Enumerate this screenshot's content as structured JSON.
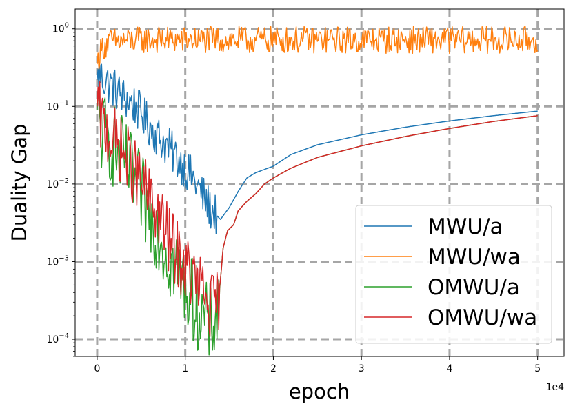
{
  "chart_data": {
    "type": "line",
    "xlabel": "epoch",
    "ylabel": "Duality Gap",
    "x_scale": "linear",
    "x_multiplier_label": "1e4",
    "x_ticks": [
      0,
      10000,
      20000,
      30000,
      40000,
      50000
    ],
    "x_tick_labels": [
      "0",
      "1",
      "2",
      "3",
      "4",
      "5"
    ],
    "xlim": [
      -2500,
      53000
    ],
    "y_scale": "log",
    "y_tick_values": [
      1,
      0.1,
      0.01,
      0.001,
      0.0001
    ],
    "y_tick_labels": [
      {
        "base": "10",
        "exp": "0"
      },
      {
        "base": "10",
        "exp": "−1"
      },
      {
        "base": "10",
        "exp": "−2"
      },
      {
        "base": "10",
        "exp": "−3"
      },
      {
        "base": "10",
        "exp": "−4"
      }
    ],
    "ylim": [
      6e-05,
      1.8
    ],
    "grid": true,
    "legend_position": "lower-right",
    "series": [
      {
        "name": "MWU/a",
        "color": "#1f77b4",
        "noise": 0.55,
        "noise_end": 13500,
        "points": [
          [
            0,
            0.22
          ],
          [
            300,
            0.25
          ],
          [
            1000,
            0.21
          ],
          [
            2000,
            0.17
          ],
          [
            3000,
            0.13
          ],
          [
            4000,
            0.11
          ],
          [
            5000,
            0.08
          ],
          [
            6000,
            0.055
          ],
          [
            7000,
            0.04
          ],
          [
            8000,
            0.03
          ],
          [
            9000,
            0.022
          ],
          [
            10000,
            0.016
          ],
          [
            11000,
            0.011
          ],
          [
            12000,
            0.007
          ],
          [
            13000,
            0.0045
          ],
          [
            13500,
            0.004
          ],
          [
            14000,
            0.0035
          ],
          [
            15000,
            0.005
          ],
          [
            16000,
            0.008
          ],
          [
            17000,
            0.012
          ],
          [
            18000,
            0.014
          ],
          [
            20000,
            0.017
          ],
          [
            22000,
            0.024
          ],
          [
            25000,
            0.032
          ],
          [
            30000,
            0.043
          ],
          [
            35000,
            0.054
          ],
          [
            40000,
            0.065
          ],
          [
            45000,
            0.076
          ],
          [
            50000,
            0.087
          ]
        ]
      },
      {
        "name": "MWU/wa",
        "color": "#ff7f0e",
        "noise": 0.35,
        "noise_end": 50000,
        "points": [
          [
            0,
            0.35
          ],
          [
            200,
            0.45
          ],
          [
            600,
            0.58
          ],
          [
            1500,
            0.68
          ],
          [
            5000,
            0.72
          ],
          [
            10000,
            0.72
          ],
          [
            20000,
            0.72
          ],
          [
            30000,
            0.72
          ],
          [
            40000,
            0.72
          ],
          [
            50000,
            0.72
          ]
        ]
      },
      {
        "name": "OMWU/a",
        "color": "#2ca02c",
        "noise": 1.1,
        "noise_end": 13800,
        "points": [
          [
            0,
            0.09
          ],
          [
            500,
            0.045
          ],
          [
            1000,
            0.04
          ],
          [
            2000,
            0.03
          ],
          [
            3000,
            0.02
          ],
          [
            4000,
            0.012
          ],
          [
            5000,
            0.007
          ],
          [
            6000,
            0.004
          ],
          [
            7000,
            0.0025
          ],
          [
            8000,
            0.0012
          ],
          [
            9000,
            0.0008
          ],
          [
            10000,
            0.0005
          ],
          [
            11000,
            0.0003
          ],
          [
            12000,
            0.0002
          ],
          [
            12500,
            0.00015
          ],
          [
            13000,
            0.00015
          ],
          [
            13700,
            0.00025
          ],
          [
            14000,
            0.0006
          ],
          [
            14300,
            0.0015
          ],
          [
            14800,
            0.0025
          ],
          [
            15500,
            0.003
          ],
          [
            16000,
            0.0045
          ],
          [
            17000,
            0.006
          ],
          [
            18000,
            0.0075
          ],
          [
            19000,
            0.01
          ],
          [
            20000,
            0.012
          ],
          [
            22000,
            0.016
          ],
          [
            25000,
            0.022
          ],
          [
            30000,
            0.031
          ],
          [
            35000,
            0.041
          ],
          [
            40000,
            0.052
          ],
          [
            45000,
            0.064
          ],
          [
            50000,
            0.076
          ]
        ]
      },
      {
        "name": "OMWU/wa",
        "color": "#d62728",
        "noise": 0.9,
        "noise_end": 13800,
        "points": [
          [
            0,
            0.1
          ],
          [
            500,
            0.06
          ],
          [
            1000,
            0.05
          ],
          [
            2000,
            0.035
          ],
          [
            3000,
            0.025
          ],
          [
            4000,
            0.016
          ],
          [
            5000,
            0.01
          ],
          [
            6000,
            0.006
          ],
          [
            7000,
            0.004
          ],
          [
            8000,
            0.002
          ],
          [
            9000,
            0.0013
          ],
          [
            10000,
            0.0008
          ],
          [
            11000,
            0.0006
          ],
          [
            12000,
            0.0004
          ],
          [
            12500,
            0.0003
          ],
          [
            13000,
            0.00025
          ],
          [
            13700,
            0.0003
          ],
          [
            14000,
            0.0006
          ],
          [
            14300,
            0.0015
          ],
          [
            14800,
            0.0025
          ],
          [
            15500,
            0.003
          ],
          [
            16000,
            0.0045
          ],
          [
            17000,
            0.006
          ],
          [
            18000,
            0.0075
          ],
          [
            19000,
            0.01
          ],
          [
            20000,
            0.012
          ],
          [
            22000,
            0.016
          ],
          [
            25000,
            0.022
          ],
          [
            30000,
            0.031
          ],
          [
            35000,
            0.041
          ],
          [
            40000,
            0.052
          ],
          [
            45000,
            0.064
          ],
          [
            50000,
            0.076
          ]
        ]
      }
    ]
  }
}
